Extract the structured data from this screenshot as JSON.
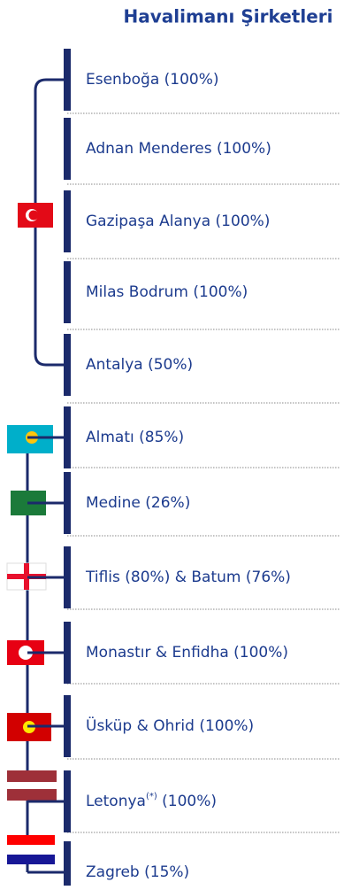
{
  "header": {
    "title": "Havalimanı Şirketleri"
  },
  "items": [
    {
      "label": "Esenboğa (100%)"
    },
    {
      "label": "Adnan Menderes (100%)"
    },
    {
      "label": "Gazipaşa Alanya (100%)"
    },
    {
      "label": "Milas Bodrum (100%)"
    },
    {
      "label": "Antalya (50%)"
    },
    {
      "label": "Almatı (85%)"
    },
    {
      "label": "Medine (26%)"
    },
    {
      "label": "Tiflis (80%)  & Batum (76%)"
    },
    {
      "label": "Monastır & Enfidha (100%)"
    },
    {
      "label": "Üsküp & Ohrid (100%)"
    },
    {
      "label": "Letonya",
      "note": "(*)",
      "suffix": " (100%)"
    },
    {
      "label": "Zagreb (15%)"
    }
  ]
}
